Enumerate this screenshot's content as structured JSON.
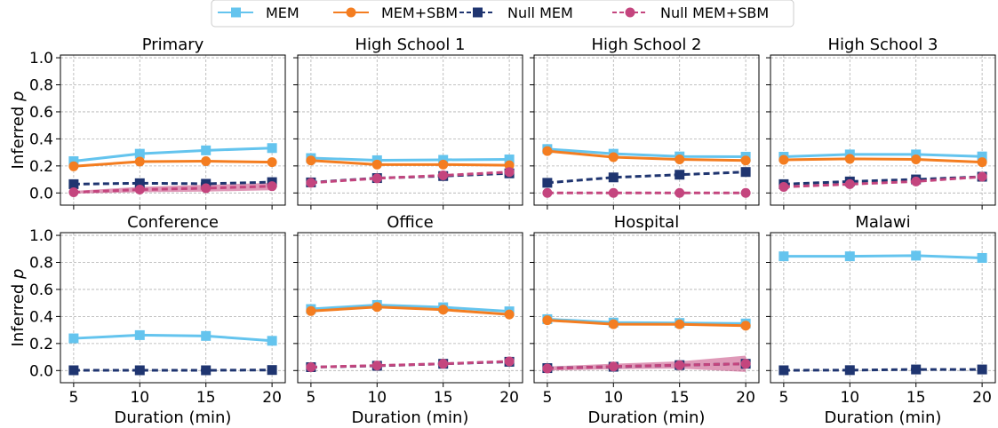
{
  "chart_data": {
    "type": "line",
    "legend": {
      "placement": "top-center",
      "entries": [
        {
          "key": "mem",
          "label": "MEM"
        },
        {
          "key": "mem_sbm",
          "label": "MEM+SBM"
        },
        {
          "key": "null_mem",
          "label": "Null MEM"
        },
        {
          "key": "null_mem_sbm",
          "label": "Null MEM+SBM"
        }
      ]
    },
    "series_styles": {
      "mem": {
        "color": "#64c4ee",
        "marker": "square",
        "dash": false
      },
      "mem_sbm": {
        "color": "#f47d20",
        "marker": "circle",
        "dash": false
      },
      "null_mem": {
        "color": "#1f3570",
        "marker": "square",
        "dash": true
      },
      "null_mem_sbm": {
        "color": "#c4457e",
        "marker": "circle",
        "dash": true
      }
    },
    "x": [
      5,
      10,
      15,
      20
    ],
    "xlim": [
      4,
      21
    ],
    "xticks": [
      "5",
      "10",
      "15",
      "20"
    ],
    "ylim": [
      -0.09,
      1.02
    ],
    "yticks": [
      "0.0",
      "0.2",
      "0.4",
      "0.6",
      "0.8",
      "1.0"
    ],
    "ytick_values": [
      0.0,
      0.2,
      0.4,
      0.6,
      0.8,
      1.0
    ],
    "xlabel": "Duration (min)",
    "ylabel": "Inferred p",
    "grid": true,
    "panels": [
      {
        "title": "Primary",
        "series": {
          "mem": [
            0.235,
            0.29,
            0.315,
            0.332
          ],
          "mem_sbm": [
            0.197,
            0.232,
            0.235,
            0.228
          ],
          "null_mem": [
            0.065,
            0.072,
            0.068,
            0.08
          ],
          "null_mem_sbm": [
            0.005,
            0.025,
            0.035,
            0.05
          ]
        },
        "band": {
          "series": "null_mem_sbm",
          "lower": [
            -0.005,
            0.005,
            0.01,
            0.02
          ],
          "upper": [
            0.015,
            0.045,
            0.06,
            0.075
          ]
        }
      },
      {
        "title": "High School 1",
        "series": {
          "mem": [
            0.258,
            0.242,
            0.245,
            0.248
          ],
          "mem_sbm": [
            0.24,
            0.21,
            0.21,
            0.205
          ],
          "null_mem": [
            0.078,
            0.11,
            0.125,
            0.145
          ],
          "null_mem_sbm": [
            0.075,
            0.108,
            0.13,
            0.155
          ]
        }
      },
      {
        "title": "High School 2",
        "series": {
          "mem": [
            0.325,
            0.29,
            0.27,
            0.268
          ],
          "mem_sbm": [
            0.31,
            0.265,
            0.248,
            0.24
          ],
          "null_mem": [
            0.075,
            0.115,
            0.135,
            0.155
          ],
          "null_mem_sbm": [
            0.0,
            0.0,
            0.0,
            0.0
          ]
        }
      },
      {
        "title": "High School 3",
        "series": {
          "mem": [
            0.268,
            0.285,
            0.285,
            0.27
          ],
          "mem_sbm": [
            0.245,
            0.252,
            0.248,
            0.228
          ],
          "null_mem": [
            0.065,
            0.085,
            0.1,
            0.12
          ],
          "null_mem_sbm": [
            0.045,
            0.065,
            0.085,
            0.12
          ]
        }
      },
      {
        "title": "Conference",
        "series": {
          "mem": [
            0.238,
            0.262,
            0.256,
            0.22
          ],
          "mem_sbm": null,
          "null_mem": [
            0.002,
            0.002,
            0.002,
            0.004
          ],
          "null_mem_sbm": null
        }
      },
      {
        "title": "Office",
        "series": {
          "mem": [
            0.455,
            0.485,
            0.468,
            0.438
          ],
          "mem_sbm": [
            0.44,
            0.47,
            0.45,
            0.415
          ],
          "null_mem": [
            0.025,
            0.035,
            0.05,
            0.065
          ],
          "null_mem_sbm": [
            0.025,
            0.037,
            0.05,
            0.068
          ]
        }
      },
      {
        "title": "Hospital",
        "series": {
          "mem": [
            0.38,
            0.355,
            0.352,
            0.348
          ],
          "mem_sbm": [
            0.372,
            0.343,
            0.342,
            0.332
          ],
          "null_mem": [
            0.018,
            0.028,
            0.04,
            0.05
          ],
          "null_mem_sbm": [
            0.015,
            0.03,
            0.04,
            0.05
          ]
        },
        "band": {
          "series": "null_mem_sbm",
          "lower": [
            0.0,
            0.01,
            0.015,
            -0.01
          ],
          "upper": [
            0.03,
            0.05,
            0.068,
            0.11
          ]
        }
      },
      {
        "title": "Malawi",
        "series": {
          "mem": [
            0.845,
            0.845,
            0.85,
            0.833
          ],
          "mem_sbm": null,
          "null_mem": [
            0.002,
            0.003,
            0.008,
            0.008
          ],
          "null_mem_sbm": null
        }
      }
    ]
  }
}
